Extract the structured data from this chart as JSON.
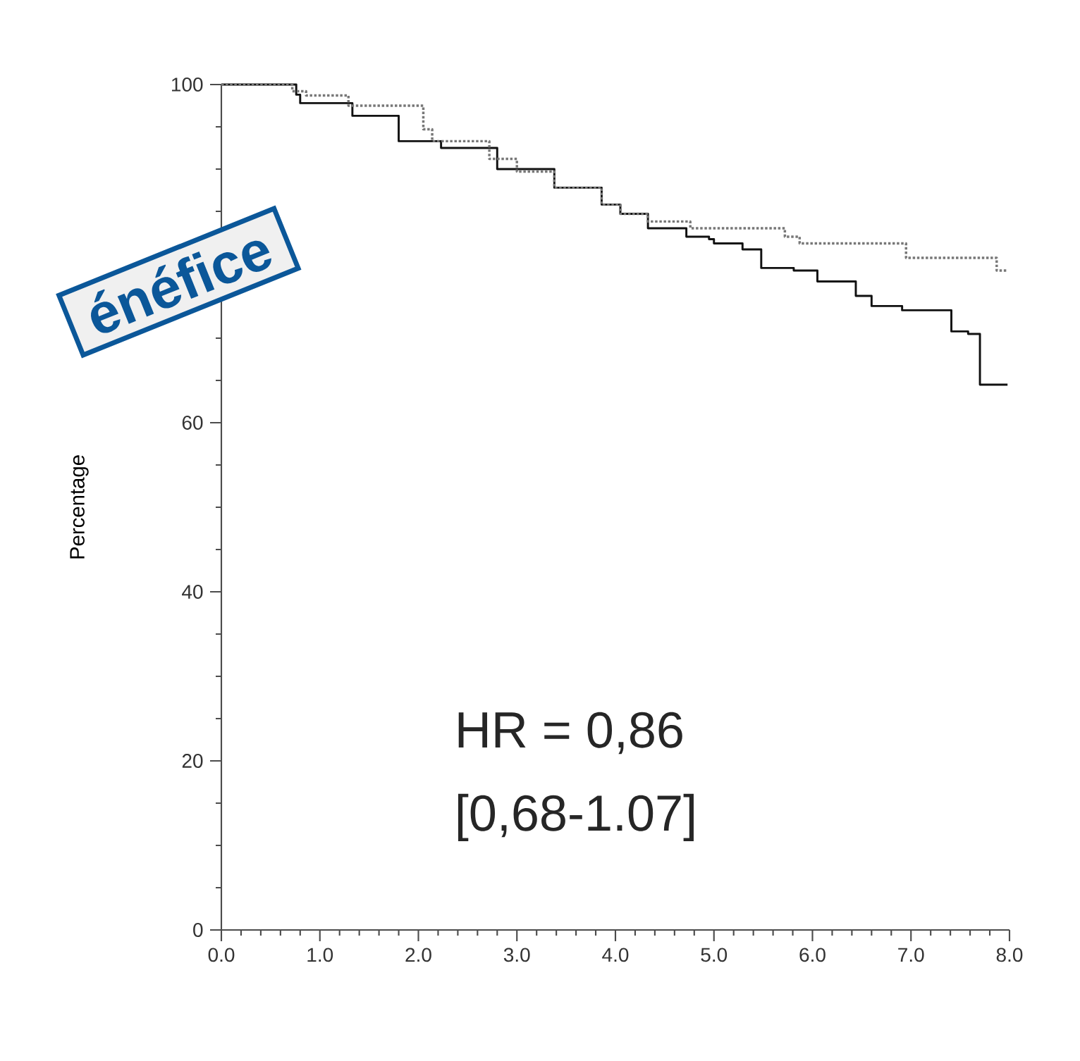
{
  "chart_data": {
    "type": "step",
    "ylabel": "Percentage",
    "annotations": [
      "HR = 0,86",
      "[0,68-1.07]",
      "énéfice"
    ],
    "xlim": [
      0,
      8
    ],
    "ylim": [
      0,
      100
    ],
    "xticks": [
      {
        "value": 0,
        "label": "0.0"
      },
      {
        "value": 1,
        "label": "1.0"
      },
      {
        "value": 2,
        "label": "2.0"
      },
      {
        "value": 3,
        "label": "3.0"
      },
      {
        "value": 4,
        "label": "4.0"
      },
      {
        "value": 5,
        "label": "5.0"
      },
      {
        "value": 6,
        "label": "6.0"
      },
      {
        "value": 7,
        "label": "7.0"
      },
      {
        "value": 8,
        "label": "8.0"
      }
    ],
    "yticks": [
      0,
      20,
      40,
      60,
      {
        "value": 80,
        "label": null
      },
      100
    ],
    "series": [
      {
        "color": "#111111",
        "line_style": "solid",
        "x": [
          0,
          0.76,
          0.8,
          1.33,
          1.8,
          2.23,
          2.8,
          3.38,
          3.86,
          4.05,
          4.33,
          4.58,
          4.72,
          4.95,
          5.0,
          5.29,
          5.48,
          5.81,
          6.0,
          6.05,
          6.44,
          6.6,
          6.91,
          7.37,
          7.41,
          7.58,
          7.7,
          7.98
        ],
        "values": [
          100,
          98.8,
          97.8,
          96.3,
          93.3,
          92.5,
          90,
          87.8,
          85.8,
          84.7,
          83,
          83,
          82,
          81.7,
          81.2,
          80.5,
          78.3,
          78,
          78,
          76.7,
          75,
          73.8,
          73.3,
          73.3,
          70.8,
          70.5,
          64.5,
          64.5
        ]
      },
      {
        "color": "#777777",
        "line_style": "dotted",
        "x": [
          0,
          0.72,
          0.86,
          1.29,
          2.05,
          2.14,
          2.72,
          3.0,
          3.38,
          3.86,
          4.05,
          4.33,
          4.76,
          5.72,
          5.87,
          6.91,
          6.95,
          7.77,
          7.87,
          7.98
        ],
        "values": [
          100,
          99.2,
          98.7,
          97.5,
          94.7,
          93.3,
          91.2,
          89.7,
          87.8,
          85.8,
          84.7,
          83.8,
          83,
          82,
          81.2,
          81.2,
          79.5,
          79.5,
          78,
          78
        ]
      }
    ]
  }
}
